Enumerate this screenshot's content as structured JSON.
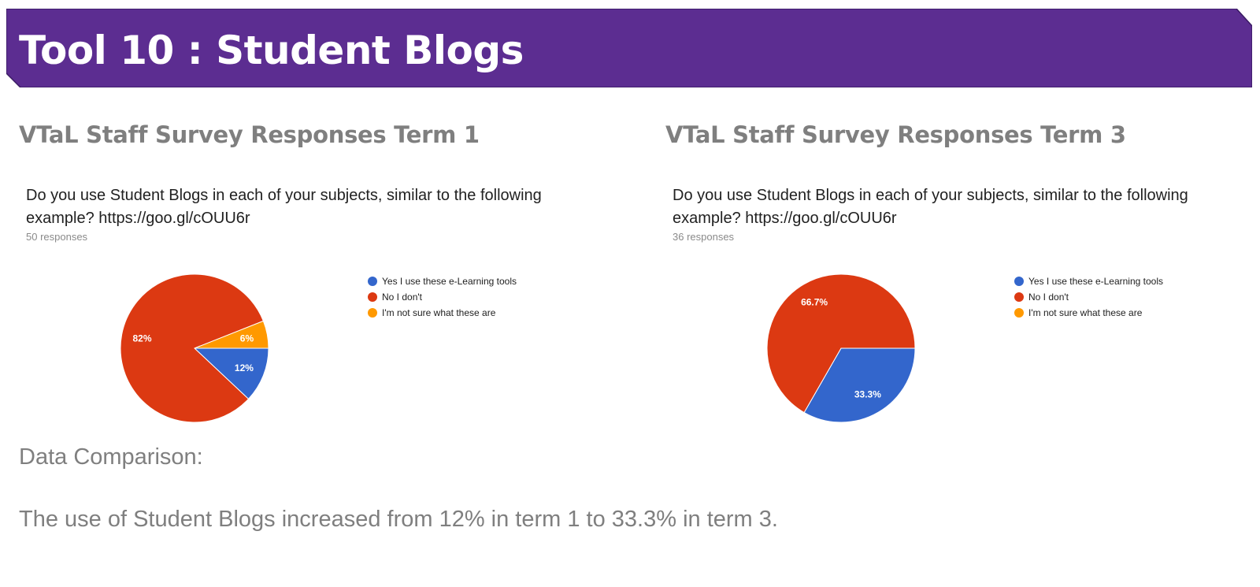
{
  "banner": {
    "title": "Tool 10 : Student Blogs",
    "color": "#5c2d91"
  },
  "chart_data": [
    {
      "type": "pie",
      "heading": "VTaL Staff Survey Responses Term 1",
      "title": "Do you use Student Blogs in each of your subjects, similar to the following example? https://goo.gl/cOUU6r",
      "subtitle": "50 responses",
      "categories": [
        "Yes I use these e-Learning tools",
        "No I don't",
        "I'm not sure what these are"
      ],
      "values": [
        12,
        82,
        6
      ],
      "data_labels": [
        "12%",
        "82%",
        "6%"
      ],
      "colors": [
        "#3366cc",
        "#dc3912",
        "#ff9900"
      ],
      "legend_position": "right"
    },
    {
      "type": "pie",
      "heading": "VTaL Staff Survey Responses Term 3",
      "title": "Do you use Student Blogs in each of your subjects, similar to the following example? https://goo.gl/cOUU6r",
      "subtitle": "36 responses",
      "categories": [
        "Yes I use these e-Learning tools",
        "No I don't",
        "I'm not sure what these are"
      ],
      "values": [
        33.3,
        66.7,
        0
      ],
      "data_labels": [
        "33.3%",
        "66.7%",
        ""
      ],
      "colors": [
        "#3366cc",
        "#dc3912",
        "#ff9900"
      ],
      "legend_position": "right"
    }
  ],
  "comparison": {
    "label": "Data Comparison:",
    "text": "The use of Student Blogs increased from 12% in term 1 to 33.3% in term 3."
  }
}
